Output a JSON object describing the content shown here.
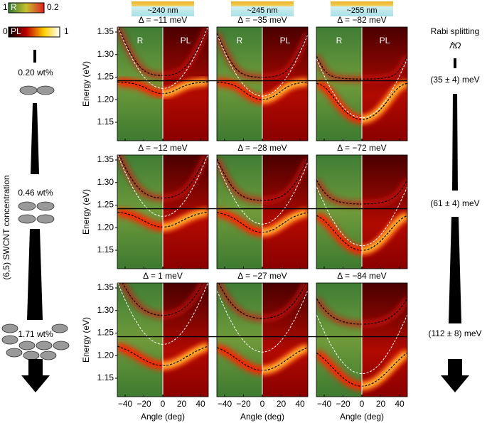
{
  "colorbars": {
    "reflectance": {
      "min": "1",
      "label": "R",
      "max": "0.2"
    },
    "pl": {
      "min": "0",
      "label": "PL",
      "max": "1"
    }
  },
  "concentration": {
    "axis_label": "(6,5) SWCNT concentration",
    "levels": [
      "0.20 wt%",
      "0.46 wt%",
      "1.71 wt%"
    ]
  },
  "thicknesses": [
    "~240 nm",
    "~245 nm",
    "~255 nm"
  ],
  "panels": {
    "detunings": [
      [
        "Δ = −11 meV",
        "Δ = −35 meV",
        "Δ = −82 meV"
      ],
      [
        "Δ = −12 meV",
        "Δ = −28 meV",
        "Δ = −72 meV"
      ],
      [
        "Δ = 1 meV",
        "Δ = −27 meV",
        "Δ = −84 meV"
      ]
    ],
    "left_label": "R",
    "right_label": "PL"
  },
  "axes": {
    "y_label": "Energy (eV)",
    "yticks": [
      "1.35",
      "1.30",
      "1.25",
      "1.20",
      "1.15"
    ],
    "x_label": "Angle (deg)",
    "xticks": [
      "−40",
      "−20",
      "0",
      "20",
      "40"
    ]
  },
  "rabi": {
    "title": "Rabi splitting",
    "symbol": "ℏΩ",
    "values": [
      "(35 ± 4) meV",
      "(61 ± 4) meV",
      "(112 ± 8) meV"
    ]
  }
}
